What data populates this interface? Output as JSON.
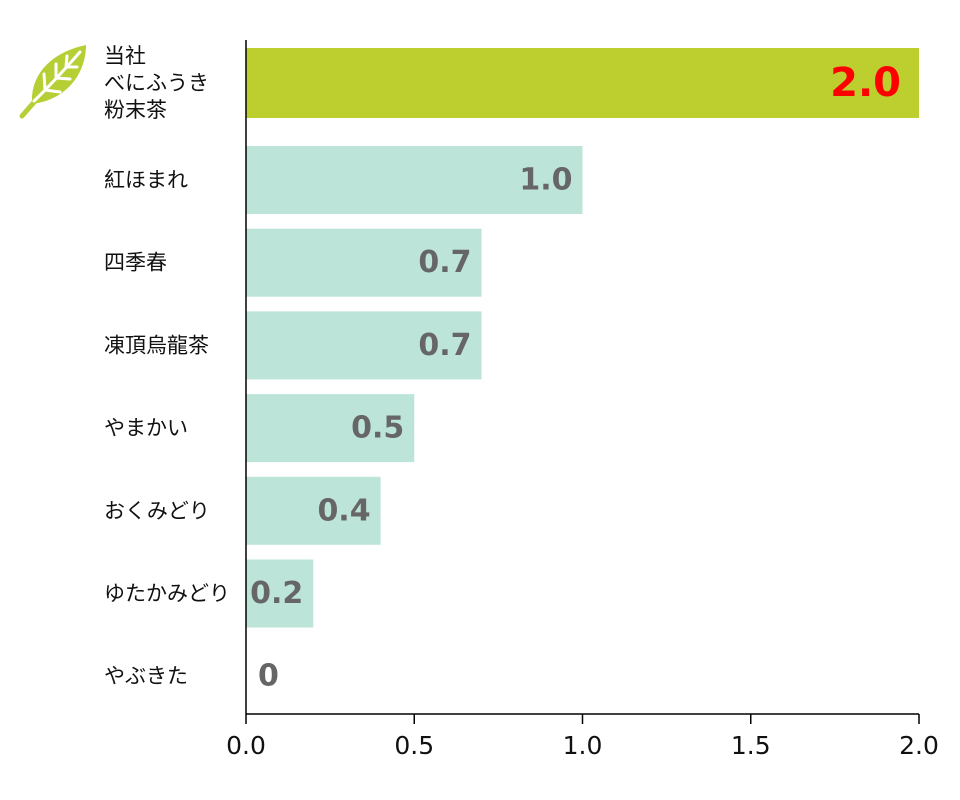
{
  "chart_data": {
    "type": "bar",
    "orientation": "horizontal",
    "categories": [
      [
        "当社",
        "べにふうき",
        "粉末茶"
      ],
      [
        "紅ほまれ"
      ],
      [
        "四季春"
      ],
      [
        "凍頂烏龍茶"
      ],
      [
        "やまかい"
      ],
      [
        "おくみどり"
      ],
      [
        "ゆたかみどり"
      ],
      [
        "やぶきた"
      ]
    ],
    "values": [
      2.0,
      1.0,
      0.7,
      0.7,
      0.5,
      0.4,
      0.2,
      0
    ],
    "value_labels": [
      "2.0",
      "1.0",
      "0.7",
      "0.7",
      "0.5",
      "0.4",
      "0.2",
      "0"
    ],
    "highlight_index": 0,
    "title": "",
    "xlabel": "",
    "ylabel": "",
    "xlim": [
      0,
      2.0
    ],
    "xticks": [
      0,
      0.5,
      1.0,
      1.5,
      2.0
    ],
    "xtick_labels": [
      "0.0",
      "0.5",
      "1.0",
      "1.5",
      "2.0"
    ],
    "grid": false,
    "legend": "none",
    "colors": {
      "highlight_bar": "#bccf2e",
      "bar": "#bde4d9",
      "highlight_value_label": "#ff0000",
      "value_label": "#666666",
      "axis": "#000000",
      "leaf_icon": "#b5cf35"
    },
    "icons": {
      "highlight_category": "leaf-icon"
    }
  }
}
